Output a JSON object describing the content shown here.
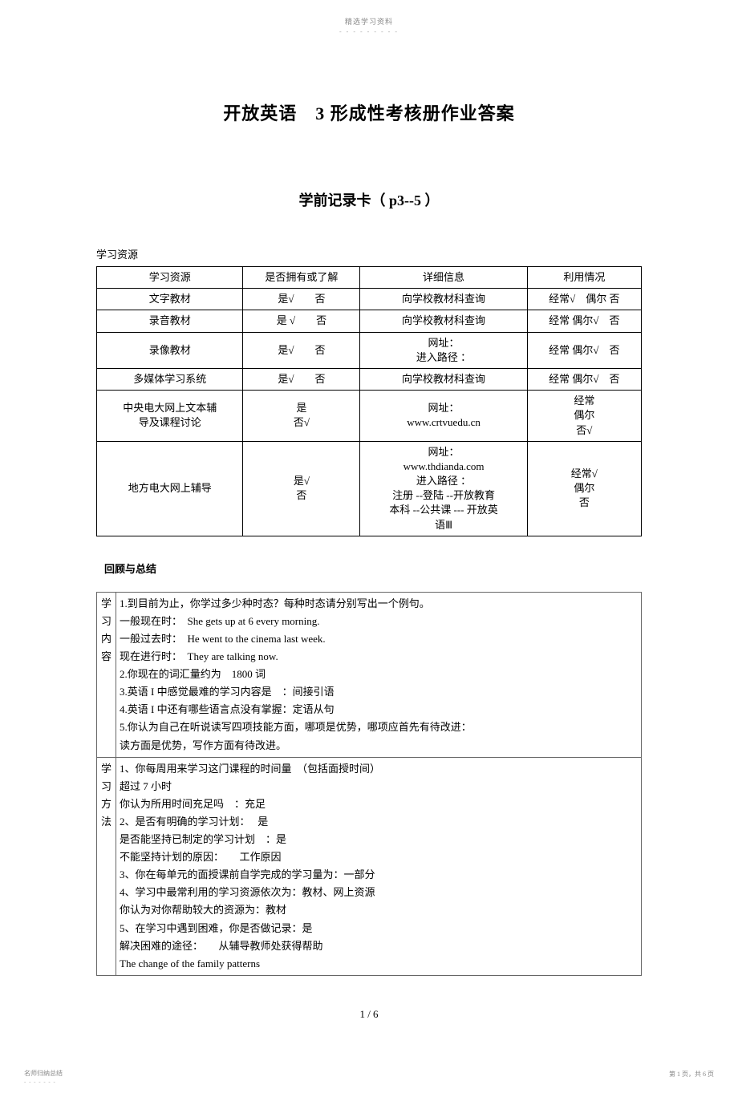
{
  "header": {
    "label": "精选学习资料",
    "dots": "- - - - - - - - -"
  },
  "title": "开放英语　3 形成性考核册作业答案",
  "subtitle": "学前记录卡（ p3--5 ）",
  "resources": {
    "section_label": "学习资源",
    "headers": [
      "学习资源",
      "是否拥有或了解",
      "详细信息",
      "利用情况"
    ],
    "rows": [
      {
        "name": "文字教材",
        "own": "是√　　否",
        "detail": "向学校教材科查询",
        "usage": "经常√　偶尔  否"
      },
      {
        "name": "录音教材",
        "own": "是 √　　否",
        "detail": "向学校教材科查询",
        "usage": "经常 偶尔√　否"
      },
      {
        "name": "录像教材",
        "own": "是√　　否",
        "detail": "网址：\n进入路径 ：",
        "usage": "经常 偶尔√　否"
      },
      {
        "name": "多媒体学习系统",
        "own": "是√　　否",
        "detail": "向学校教材科查询",
        "usage": "经常 偶尔√　否"
      },
      {
        "name": "中央电大网上文本辅\n导及课程讨论",
        "own": "是\n否√",
        "detail": "网址：\nwww.crtvuedu.cn",
        "usage": "经常\n偶尔\n否√"
      },
      {
        "name": "地方电大网上辅导",
        "own": "是√\n否",
        "detail": "网址：\nwww.thdianda.com\n进入路径 ：\n注册 --登陆 --开放教育\n本科 --公共课 --- 开放英\n语Ⅲ",
        "usage": "经常√\n偶尔\n否"
      }
    ]
  },
  "review": {
    "section_label": "回顾与总结",
    "group1": {
      "label": "学习内容",
      "body": "1.到目前为止，你学过多少种时态？每种时态请分别写出一个例句。\n一般现在时：　She gets up at 6 every morning.\n一般过去时：　He went to the cinema last week.\n现在进行时：　They are talking now.\n2.你现在的词汇量约为　1800 词\n3.英语 I 中感觉最难的学习内容是　：间接引语\n4.英语 I 中还有哪些语言点没有掌握：定语从句\n5.你认为自己在听说读写四项技能方面，哪项是优势，哪项应首先有待改进：\n读方面是优势，写作方面有待改进。"
    },
    "group2": {
      "label": "学习方法",
      "body": "1、你每周用来学习这门课程的时间量　（包括面授时间）\n超过 7 小时\n你认为所用时间充足吗　：充足\n2、是否有明确的学习计划：　 是\n是否能坚持已制定的学习计划　：是\n不能坚持计划的原因：　　工作原因\n3、你在每单元的面授课前自学完成的学习量为：一部分\n4、学习中最常利用的学习资源依次为：教材、网上资源\n你认为对你帮助较大的资源为：教材\n5、在学习中遇到困难，你是否做记录：是\n解决困难的途径：　　从辅导教师处获得帮助\nThe change of the family patterns"
    }
  },
  "page_num": "1 / 6",
  "footer": {
    "left": "名师归纳总结",
    "dots": "- - - - - - -",
    "right": "第 1 页，共 6 页"
  }
}
